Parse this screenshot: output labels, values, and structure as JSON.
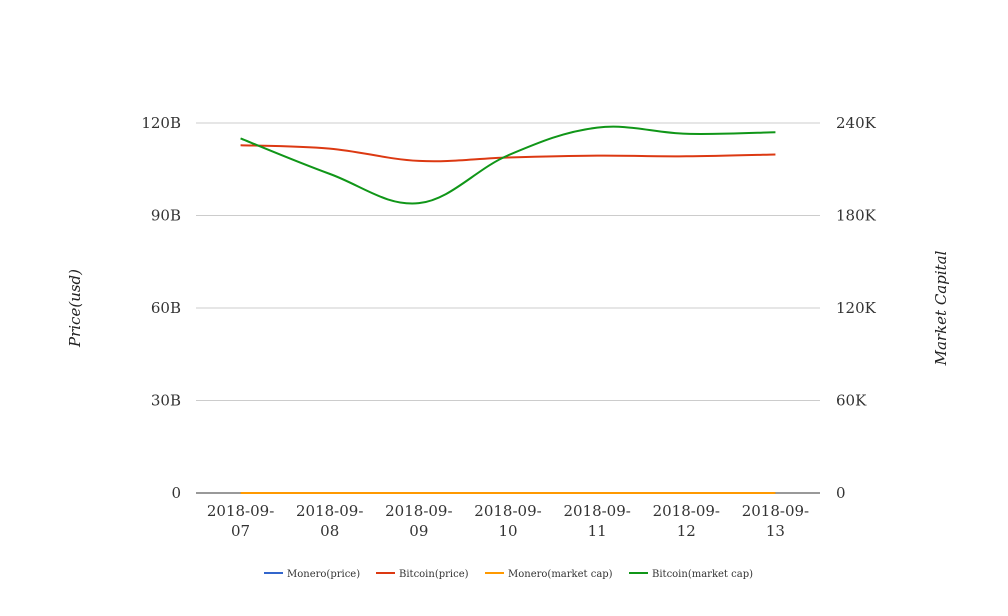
{
  "chart_data": {
    "type": "line",
    "title": "",
    "categories": [
      "2018-09-07",
      "2018-09-08",
      "2018-09-09",
      "2018-09-10",
      "2018-09-11",
      "2018-09-12",
      "2018-09-13"
    ],
    "category_labels": [
      [
        "2018-09-",
        "07"
      ],
      [
        "2018-09-",
        "08"
      ],
      [
        "2018-09-",
        "09"
      ],
      [
        "2018-09-",
        "10"
      ],
      [
        "2018-09-",
        "11"
      ],
      [
        "2018-09-",
        "12"
      ],
      [
        "2018-09-",
        "13"
      ]
    ],
    "ylabel": "Price(usd)",
    "y2label": "Market Capital",
    "ylim": [
      0,
      120000000000
    ],
    "y2lim": [
      0,
      240000
    ],
    "y_ticks": [
      0,
      30000000000,
      60000000000,
      90000000000,
      120000000000
    ],
    "y_tick_labels": [
      "0",
      "30B",
      "60B",
      "90B",
      "120B"
    ],
    "y2_ticks": [
      0,
      60000,
      120000,
      180000,
      240000
    ],
    "y2_tick_labels": [
      "0",
      "60K",
      "120K",
      "180K",
      "240K"
    ],
    "grid": true,
    "legend_position": "bottom",
    "series": [
      {
        "name": "Monero(price)",
        "axis": "left",
        "color": "#3366cc",
        "values": [
          0,
          0,
          0,
          0,
          0,
          0,
          0
        ]
      },
      {
        "name": "Bitcoin(price)",
        "axis": "left",
        "color": "#dc3912",
        "values": [
          112800000000,
          111700000000,
          107700000000,
          108800000000,
          109400000000,
          109200000000,
          109800000000
        ]
      },
      {
        "name": "Monero(market cap)",
        "axis": "right",
        "color": "#ff9900",
        "values": [
          0,
          0,
          0,
          0,
          0,
          0,
          0
        ]
      },
      {
        "name": "Bitcoin(market cap)",
        "axis": "right",
        "color": "#109618",
        "values": [
          230000,
          207000,
          188000,
          219000,
          237000,
          233000,
          234000
        ]
      }
    ]
  }
}
